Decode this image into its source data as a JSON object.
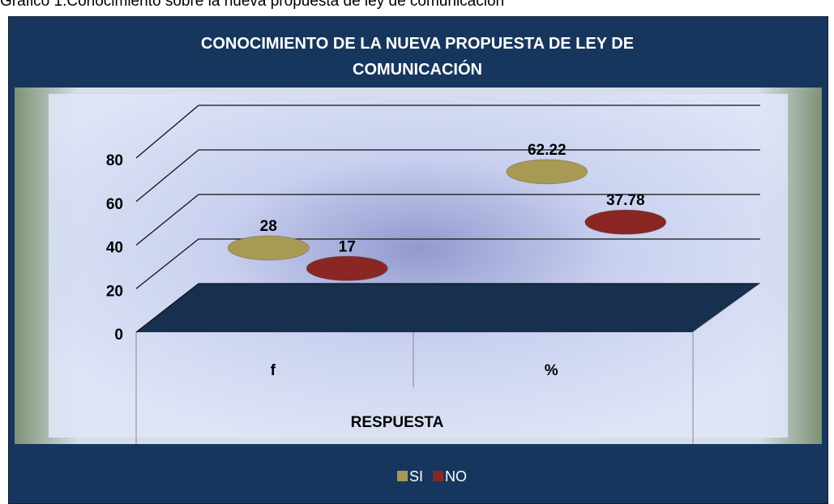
{
  "caption": "Gráfico 1.Conocimiento sobre la nueva propuesta de ley de comunicación",
  "chart_data": {
    "type": "bar3d",
    "title": "CONOCIMIENTO DE LA NUEVA PROPUESTA DE LEY DE COMUNICACIÓN",
    "x_label": "RESPUESTA",
    "categories": [
      "f",
      "%"
    ],
    "series": [
      {
        "name": "SI",
        "color": "#a89a52",
        "values": [
          28,
          62.22
        ]
      },
      {
        "name": "NO",
        "color": "#8a2724",
        "values": [
          17,
          37.78
        ]
      }
    ],
    "ylim": [
      0,
      80
    ],
    "yticks": [
      0,
      20,
      40,
      60,
      80
    ],
    "grid": true,
    "legend": "bottom"
  }
}
